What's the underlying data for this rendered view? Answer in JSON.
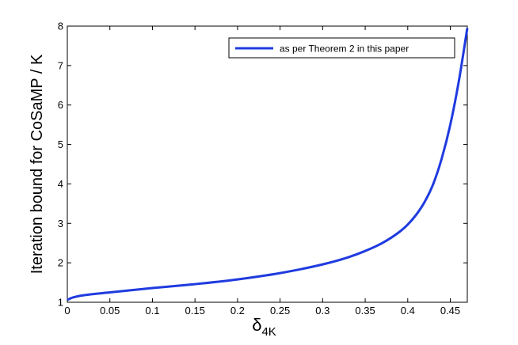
{
  "chart_data": {
    "type": "line",
    "title": "",
    "xlabel_main": "δ",
    "xlabel_sub": "4K",
    "ylabel": "Iteration bound for CoSaMP / K",
    "xlim": [
      0,
      0.47
    ],
    "ylim": [
      1,
      8
    ],
    "xticks": [
      0,
      0.05,
      0.1,
      0.15,
      0.2,
      0.25,
      0.3,
      0.35,
      0.4,
      0.45
    ],
    "xtick_labels": [
      "0",
      "0.05",
      "0.1",
      "0.15",
      "0.2",
      "0.25",
      "0.3",
      "0.35",
      "0.4",
      "0.45"
    ],
    "yticks": [
      1,
      2,
      3,
      4,
      5,
      6,
      7,
      8
    ],
    "ytick_labels": [
      "1",
      "2",
      "3",
      "4",
      "5",
      "6",
      "7",
      "8"
    ],
    "grid": false,
    "legend_position": "top-right",
    "series": [
      {
        "name": "as per Theorem 2 in this paper",
        "color": "#1f3be0",
        "x": [
          0,
          0.005,
          0.01,
          0.02,
          0.05,
          0.1,
          0.15,
          0.2,
          0.25,
          0.3,
          0.33,
          0.35,
          0.37,
          0.39,
          0.4,
          0.41,
          0.42,
          0.43,
          0.44,
          0.45,
          0.46,
          0.47
        ],
        "y": [
          1.06,
          1.11,
          1.14,
          1.18,
          1.25,
          1.36,
          1.46,
          1.58,
          1.74,
          1.96,
          2.14,
          2.3,
          2.5,
          2.78,
          2.97,
          3.22,
          3.55,
          4.0,
          4.65,
          5.5,
          6.6,
          7.95
        ]
      }
    ]
  }
}
